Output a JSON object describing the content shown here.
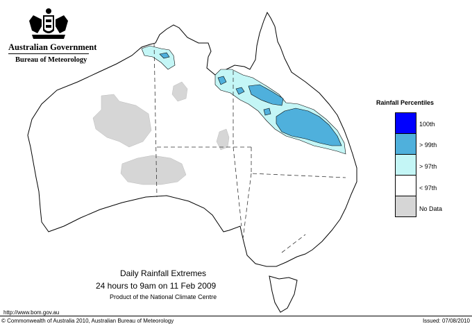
{
  "header": {
    "government": "Australian Government",
    "bureau": "Bureau of Meteorology"
  },
  "legend": {
    "title": "Rainfall Percentiles",
    "items": [
      {
        "label": "100th",
        "color": "#0000ff"
      },
      {
        "label": "> 99th",
        "color": "#4fb0dc"
      },
      {
        "label": "> 97th",
        "color": "#c4f6f6"
      },
      {
        "label": "< 97th",
        "color": "#ffffff"
      },
      {
        "label": "No Data",
        "color": "#d6d6d6"
      }
    ]
  },
  "caption": {
    "line1": "Daily Rainfall Extremes",
    "line2": "24 hours to 9am on 11 Feb 2009",
    "line3": "Product of the National Climate Centre"
  },
  "footer": {
    "url": "http://www.bom.gov.au",
    "copyright": "© Commonwealth of Australia 2010, Australian Bureau of Meteorology",
    "issued": "Issued: 07/08/2010"
  }
}
